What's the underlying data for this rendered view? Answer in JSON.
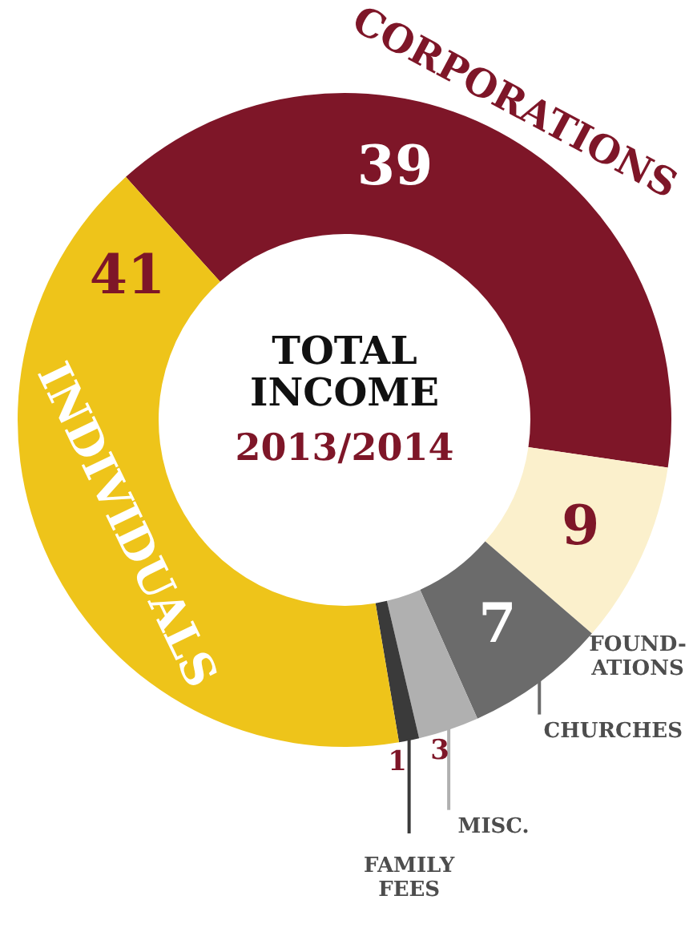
{
  "chart_data": {
    "type": "donut",
    "title": "TOTAL\nINCOME",
    "subtitle": "2013/2014",
    "categories": [
      "CORPORATIONS",
      "FOUND-\nATIONS",
      "CHURCHES",
      "MISC.",
      "FAMILY\nFEES",
      "INDIVIDUALS"
    ],
    "values": [
      39,
      9,
      7,
      3,
      1,
      41
    ],
    "colors": [
      "#7e1628",
      "#fbf0cc",
      "#6b6b6b",
      "#b0b0b0",
      "#3a3a3a",
      "#eec41a"
    ],
    "data_labels": true
  }
}
